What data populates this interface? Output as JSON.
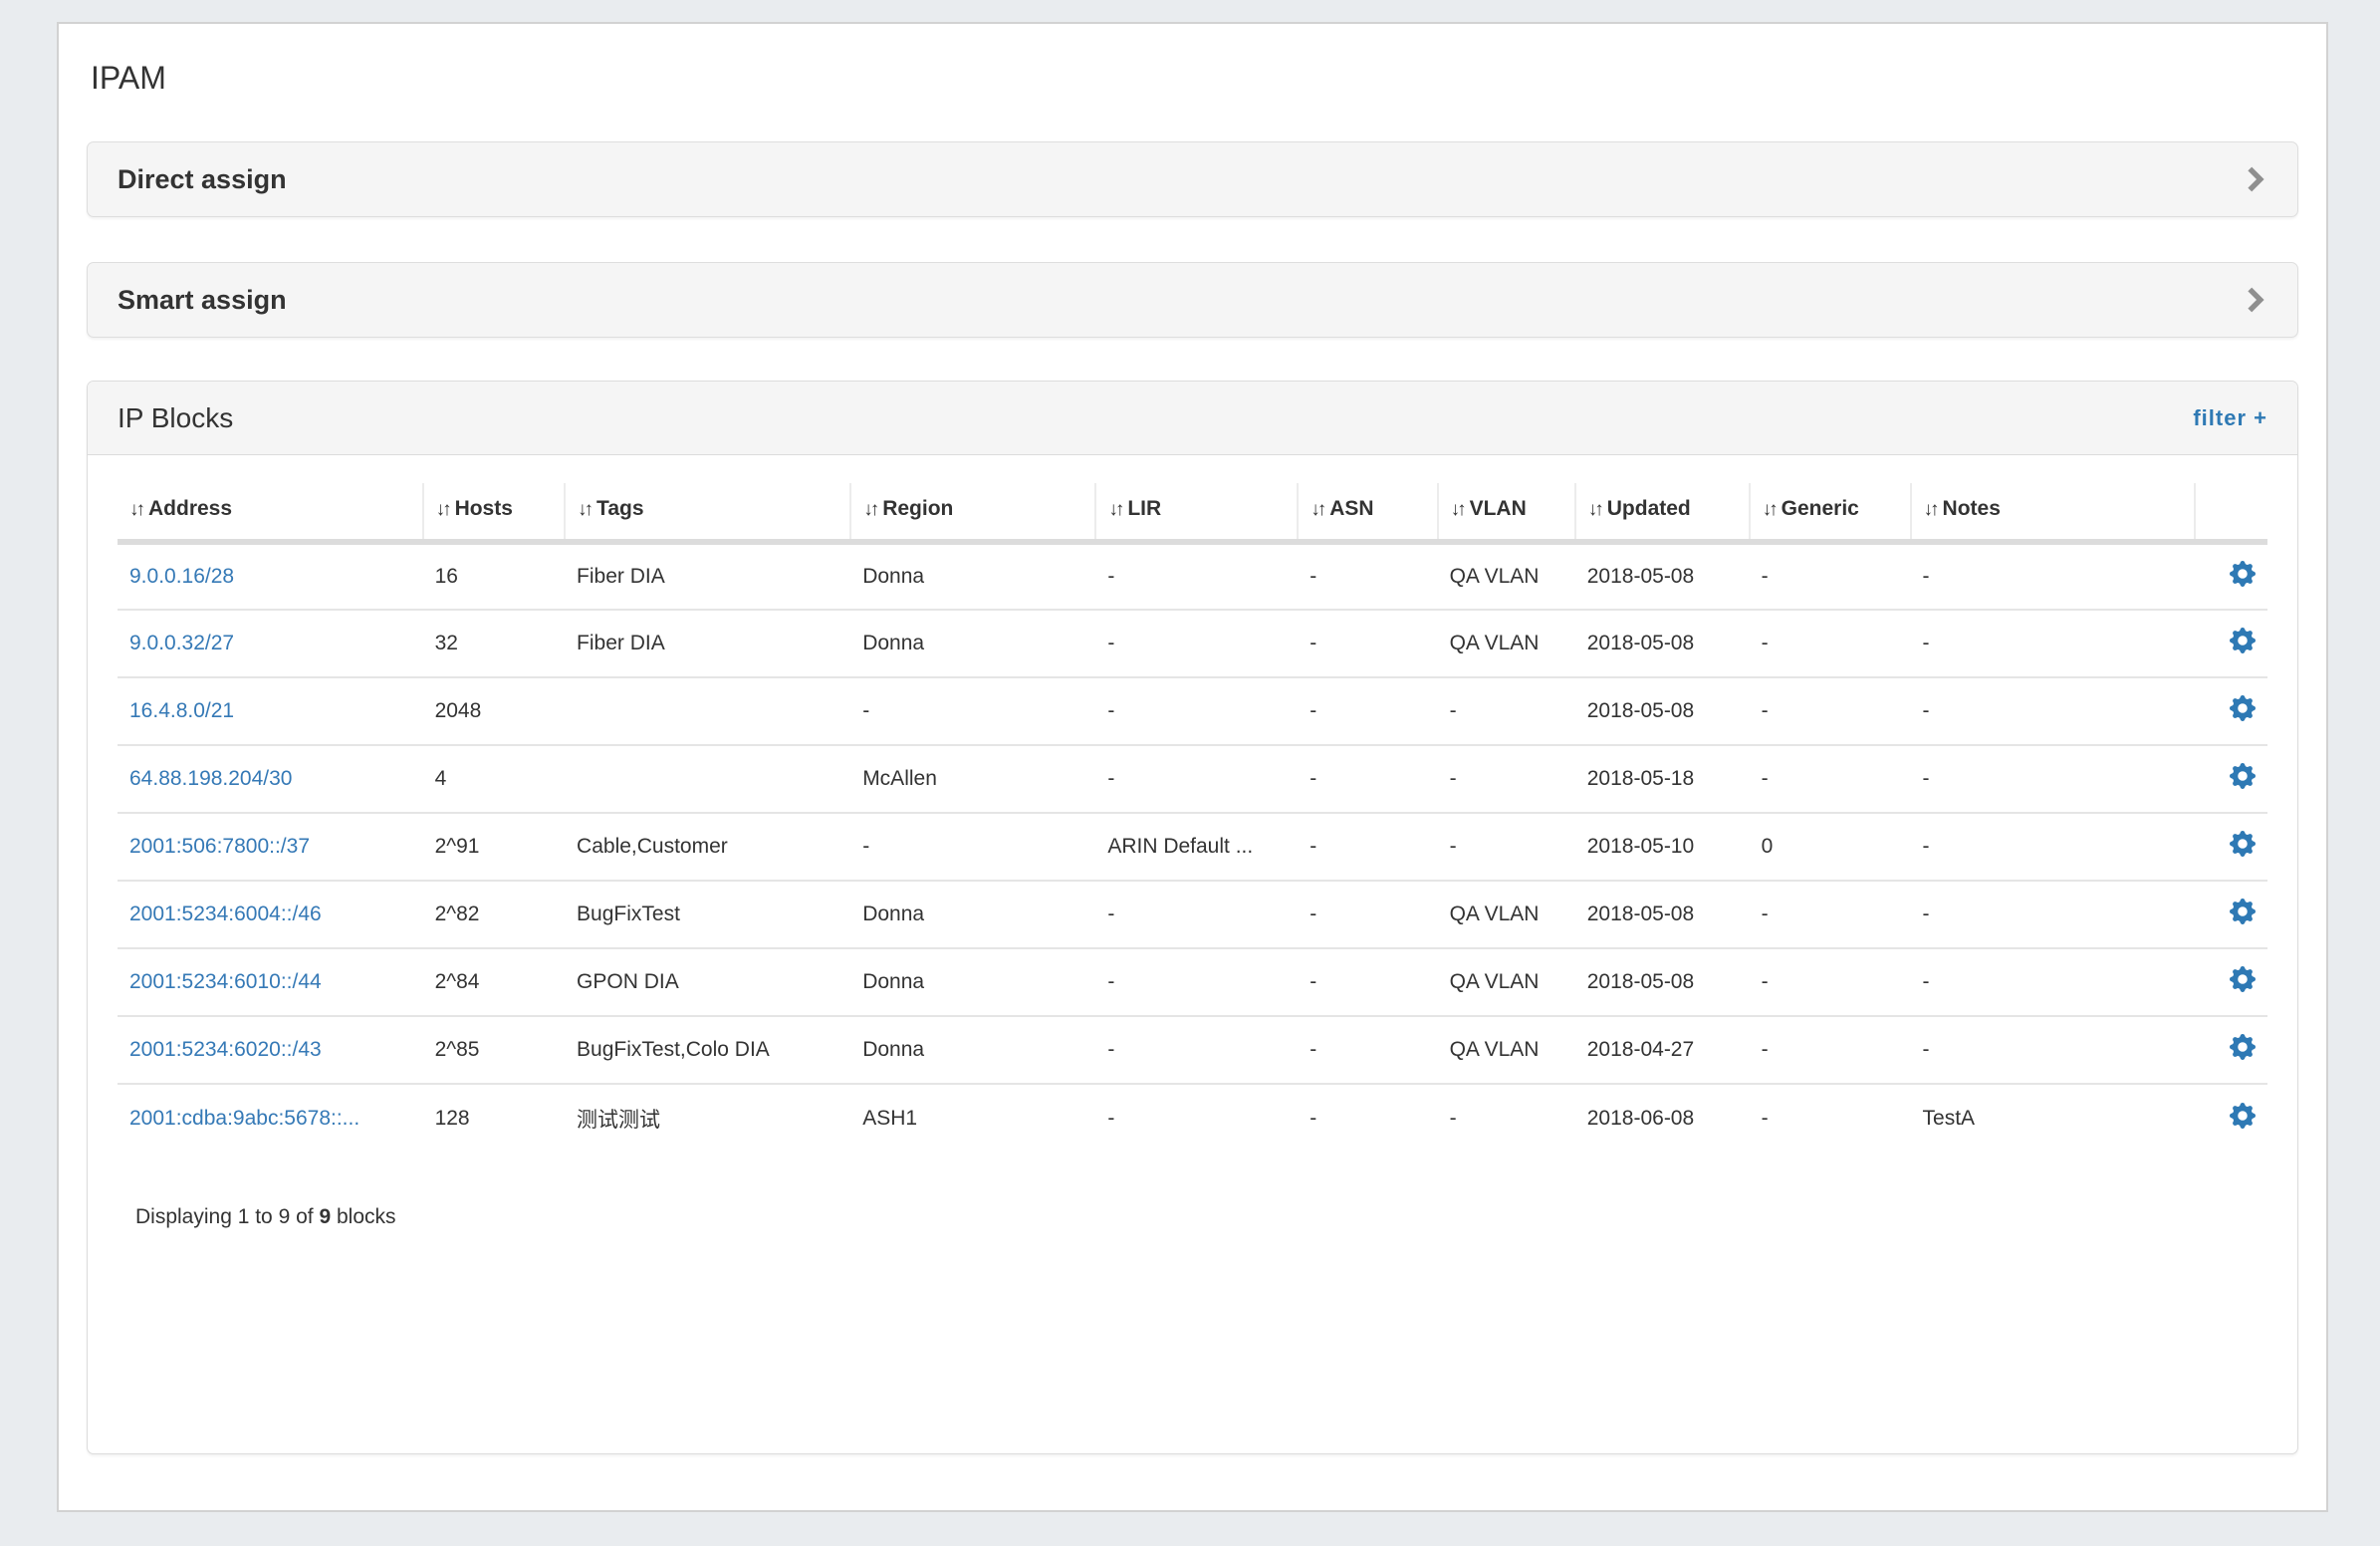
{
  "page": {
    "title": "IPAM"
  },
  "panels": [
    {
      "label": "Direct assign"
    },
    {
      "label": "Smart assign"
    }
  ],
  "ip_blocks": {
    "title": "IP Blocks",
    "filter_label": "filter +",
    "sort_icon": "↓↑",
    "columns": [
      {
        "key": "address",
        "label": "Address"
      },
      {
        "key": "hosts",
        "label": "Hosts"
      },
      {
        "key": "tags",
        "label": "Tags"
      },
      {
        "key": "region",
        "label": "Region"
      },
      {
        "key": "lir",
        "label": "LIR"
      },
      {
        "key": "asn",
        "label": "ASN"
      },
      {
        "key": "vlan",
        "label": "VLAN"
      },
      {
        "key": "updated",
        "label": "Updated"
      },
      {
        "key": "generic",
        "label": "Generic"
      },
      {
        "key": "notes",
        "label": "Notes"
      }
    ],
    "rows": [
      {
        "address": "9.0.0.16/28",
        "hosts": "16",
        "tags": "Fiber DIA",
        "region": "Donna",
        "lir": "-",
        "asn": "-",
        "vlan": "QA VLAN",
        "updated": "2018-05-08",
        "generic": "-",
        "notes": "-"
      },
      {
        "address": "9.0.0.32/27",
        "hosts": "32",
        "tags": "Fiber DIA",
        "region": "Donna",
        "lir": "-",
        "asn": "-",
        "vlan": "QA VLAN",
        "updated": "2018-05-08",
        "generic": "-",
        "notes": "-"
      },
      {
        "address": "16.4.8.0/21",
        "hosts": "2048",
        "tags": "",
        "region": "-",
        "lir": "-",
        "asn": "-",
        "vlan": "-",
        "updated": "2018-05-08",
        "generic": "-",
        "notes": "-"
      },
      {
        "address": "64.88.198.204/30",
        "hosts": "4",
        "tags": "",
        "region": "McAllen",
        "lir": "-",
        "asn": "-",
        "vlan": "-",
        "updated": "2018-05-18",
        "generic": "-",
        "notes": "-"
      },
      {
        "address": "2001:506:7800::/37",
        "hosts": "2^91",
        "tags": "Cable,Customer",
        "region": "-",
        "lir": "ARIN Default ...",
        "asn": "-",
        "vlan": "-",
        "updated": "2018-05-10",
        "generic": "0",
        "notes": "-"
      },
      {
        "address": "2001:5234:6004::/46",
        "hosts": "2^82",
        "tags": "BugFixTest",
        "region": "Donna",
        "lir": "-",
        "asn": "-",
        "vlan": "QA VLAN",
        "updated": "2018-05-08",
        "generic": "-",
        "notes": "-"
      },
      {
        "address": "2001:5234:6010::/44",
        "hosts": "2^84",
        "tags": "GPON DIA",
        "region": "Donna",
        "lir": "-",
        "asn": "-",
        "vlan": "QA VLAN",
        "updated": "2018-05-08",
        "generic": "-",
        "notes": "-"
      },
      {
        "address": "2001:5234:6020::/43",
        "hosts": "2^85",
        "tags": "BugFixTest,Colo DIA",
        "region": "Donna",
        "lir": "-",
        "asn": "-",
        "vlan": "QA VLAN",
        "updated": "2018-04-27",
        "generic": "-",
        "notes": "-"
      },
      {
        "address": "2001:cdba:9abc:5678::...",
        "hosts": "128",
        "tags": "测试测试",
        "region": "ASH1",
        "lir": "-",
        "asn": "-",
        "vlan": "-",
        "updated": "2018-06-08",
        "generic": "-",
        "notes": "TestA"
      }
    ],
    "footer": {
      "prefix": "Displaying 1 to 9 of",
      "total": "9",
      "suffix": "blocks"
    }
  },
  "colors": {
    "link": "#3579b6",
    "accent": "#2e79b4",
    "page_bg": "#e9ecef",
    "panel_bg": "#f5f5f5"
  }
}
